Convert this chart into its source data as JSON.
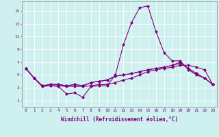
{
  "xlabel": "Windchill (Refroidissement éolien,°C)",
  "background_color": "#cef0ee",
  "grid_color": "#ffffff",
  "line_color": "#800080",
  "x": [
    0,
    1,
    2,
    3,
    4,
    5,
    6,
    7,
    8,
    9,
    10,
    11,
    12,
    13,
    14,
    15,
    16,
    17,
    18,
    19,
    20,
    21,
    22,
    23
  ],
  "series": [
    [
      6.0,
      4.5,
      3.2,
      3.3,
      3.2,
      2.0,
      2.2,
      1.5,
      3.2,
      3.3,
      3.3,
      5.0,
      9.7,
      13.2,
      15.5,
      15.8,
      11.8,
      8.5,
      7.2,
      7.2,
      5.8,
      5.0,
      4.5,
      3.5
    ],
    [
      6.0,
      4.5,
      3.3,
      3.3,
      3.3,
      3.2,
      3.2,
      3.2,
      3.3,
      3.5,
      3.5,
      3.8,
      4.2,
      4.5,
      5.0,
      5.5,
      5.8,
      6.0,
      6.2,
      6.5,
      6.5,
      6.2,
      5.8,
      3.5
    ],
    [
      6.0,
      4.5,
      3.3,
      3.5,
      3.5,
      3.3,
      3.5,
      3.3,
      3.8,
      4.0,
      4.2,
      4.8,
      5.0,
      5.2,
      5.5,
      5.8,
      6.0,
      6.2,
      6.5,
      7.0,
      6.0,
      5.2,
      4.5,
      3.5
    ],
    [
      6.0,
      4.5,
      3.3,
      3.5,
      3.5,
      3.3,
      3.5,
      3.3,
      3.8,
      4.0,
      4.2,
      4.8,
      5.0,
      5.2,
      5.5,
      5.8,
      6.0,
      6.2,
      6.5,
      6.8,
      6.0,
      5.2,
      4.5,
      3.5
    ]
  ],
  "ylim": [
    0,
    16.5
  ],
  "xlim": [
    -0.5,
    23.5
  ],
  "yticks": [
    1,
    3,
    5,
    7,
    9,
    11,
    13,
    15
  ],
  "xticks": [
    0,
    1,
    2,
    3,
    4,
    5,
    6,
    7,
    8,
    9,
    10,
    11,
    12,
    13,
    14,
    15,
    16,
    17,
    18,
    19,
    20,
    21,
    22,
    23
  ],
  "marker": "D",
  "markersize": 2,
  "linewidth": 0.8,
  "tick_fontsize": 4.5,
  "xlabel_fontsize": 5.5
}
